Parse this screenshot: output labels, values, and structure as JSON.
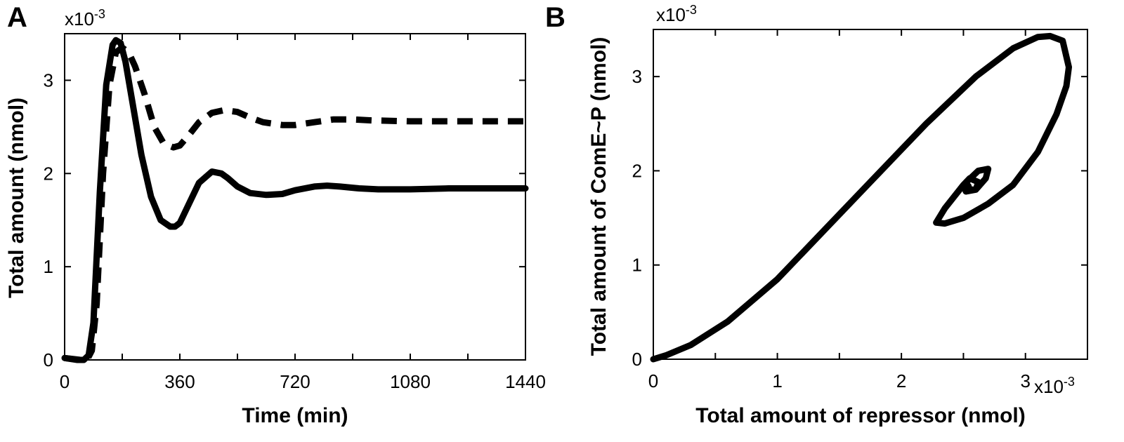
{
  "chart_data": [
    {
      "panel": "A",
      "type": "line",
      "xlabel": "Time (min)",
      "ylabel": "Total amount (nmol)",
      "y_multiplier": "x10",
      "y_multiplier_exp": "-3",
      "xlim": [
        0,
        1440
      ],
      "ylim": [
        0,
        3.5
      ],
      "xticks": [
        0,
        360,
        720,
        1080,
        1440
      ],
      "xtick_labels": [
        "0",
        "360",
        "720",
        "1080",
        "1440"
      ],
      "yticks": [
        0,
        1,
        2,
        3
      ],
      "ytick_labels": [
        "0",
        "1",
        "2",
        "3"
      ],
      "series": [
        {
          "name": "solid",
          "style": "solid",
          "x": [
            0,
            40,
            60,
            75,
            90,
            110,
            130,
            150,
            160,
            175,
            190,
            210,
            240,
            270,
            300,
            330,
            345,
            360,
            385,
            420,
            460,
            490,
            510,
            540,
            580,
            630,
            680,
            720,
            780,
            820,
            860,
            920,
            980,
            1080,
            1200,
            1320,
            1440
          ],
          "y": [
            0.02,
            0.0,
            0.0,
            0.05,
            0.4,
            1.8,
            2.95,
            3.38,
            3.43,
            3.4,
            3.2,
            2.8,
            2.2,
            1.75,
            1.5,
            1.43,
            1.43,
            1.47,
            1.65,
            1.9,
            2.02,
            2.0,
            1.95,
            1.86,
            1.79,
            1.77,
            1.78,
            1.82,
            1.86,
            1.87,
            1.86,
            1.84,
            1.83,
            1.83,
            1.84,
            1.84,
            1.84
          ]
        },
        {
          "name": "dashed",
          "style": "dashed",
          "x": [
            0,
            50,
            70,
            85,
            100,
            120,
            140,
            160,
            180,
            200,
            220,
            250,
            280,
            310,
            340,
            360,
            390,
            420,
            460,
            500,
            540,
            580,
            620,
            680,
            720,
            780,
            840,
            900,
            960,
            1080,
            1200,
            1320,
            1440
          ],
          "y": [
            0.02,
            0.0,
            0.0,
            0.1,
            0.6,
            2.0,
            2.95,
            3.3,
            3.35,
            3.3,
            3.15,
            2.85,
            2.5,
            2.32,
            2.28,
            2.3,
            2.42,
            2.55,
            2.65,
            2.68,
            2.66,
            2.6,
            2.55,
            2.52,
            2.52,
            2.55,
            2.58,
            2.58,
            2.57,
            2.56,
            2.56,
            2.56,
            2.56
          ]
        }
      ]
    },
    {
      "panel": "B",
      "type": "line",
      "xlabel": "Total amount of repressor (nmol)",
      "ylabel": "Total amount of ComE~P (nmol)",
      "x_multiplier": "x10",
      "x_multiplier_exp": "-3",
      "y_multiplier": "x10",
      "y_multiplier_exp": "-3",
      "xlim": [
        0,
        3.5
      ],
      "ylim": [
        0,
        3.5
      ],
      "xticks": [
        0,
        1,
        2,
        3
      ],
      "xtick_labels": [
        "0",
        "1",
        "2",
        "3"
      ],
      "yticks": [
        0,
        1,
        2,
        3
      ],
      "ytick_labels": [
        "0",
        "1",
        "2",
        "3"
      ],
      "series": [
        {
          "name": "trajectory",
          "style": "solid",
          "x": [
            0.0,
            0.1,
            0.3,
            0.6,
            1.0,
            1.4,
            1.8,
            2.2,
            2.6,
            2.9,
            3.1,
            3.2,
            3.3,
            3.35,
            3.33,
            3.25,
            3.1,
            2.9,
            2.7,
            2.5,
            2.35,
            2.28,
            2.35,
            2.5,
            2.62,
            2.7,
            2.68,
            2.6,
            2.52,
            2.5,
            2.55,
            2.62,
            2.6,
            2.55,
            2.54
          ],
          "y": [
            0.0,
            0.04,
            0.15,
            0.4,
            0.85,
            1.4,
            1.95,
            2.5,
            3.0,
            3.3,
            3.42,
            3.43,
            3.38,
            3.1,
            2.9,
            2.6,
            2.2,
            1.85,
            1.65,
            1.5,
            1.44,
            1.45,
            1.6,
            1.85,
            2.0,
            2.02,
            1.92,
            1.8,
            1.78,
            1.85,
            1.92,
            1.88,
            1.8,
            1.8,
            1.84
          ]
        }
      ]
    }
  ]
}
